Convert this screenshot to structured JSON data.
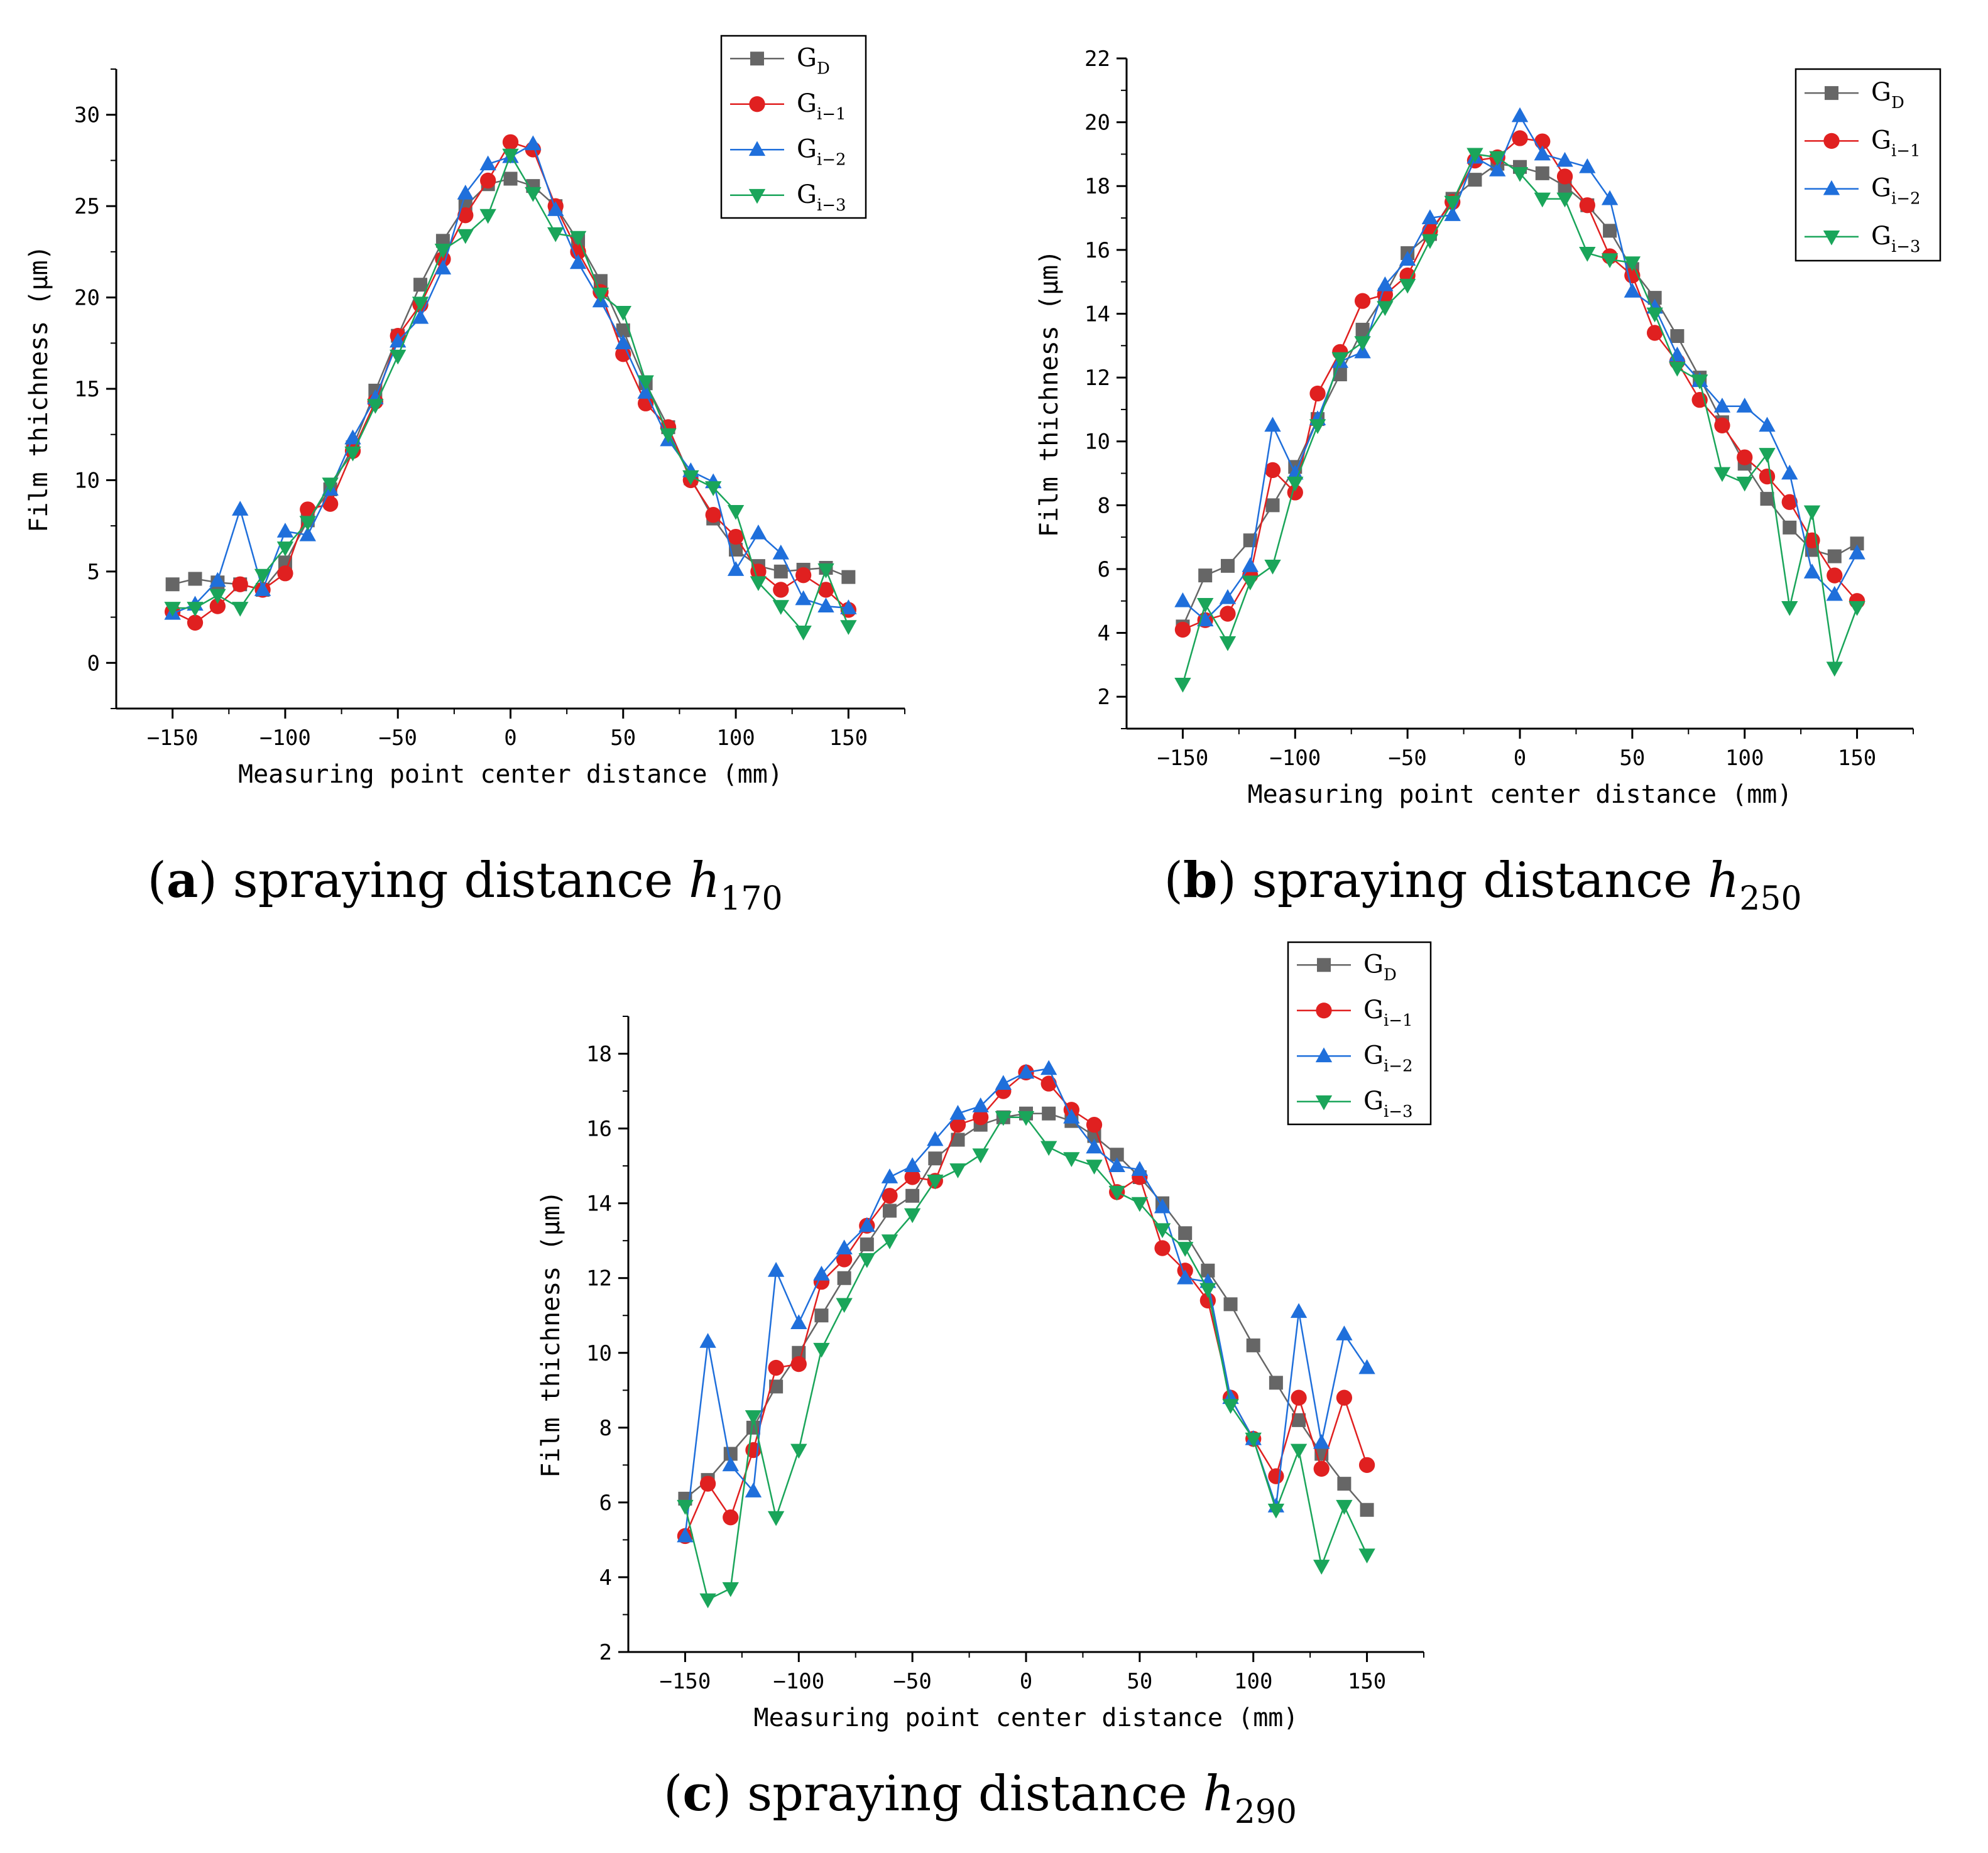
{
  "chart_data": [
    {
      "id": "a",
      "type": "line",
      "caption": {
        "letter": "a",
        "text": "spraying distance",
        "var": "h",
        "sub": "170"
      },
      "xlabel": "Measuring point center distance (mm)",
      "ylabel": "Film thichness (μm)",
      "xlim": [
        -175,
        175
      ],
      "ylim": [
        -2.5,
        32.5
      ],
      "xticks": [
        -150,
        -100,
        -50,
        0,
        50,
        100,
        150
      ],
      "yticks": [
        0,
        5,
        10,
        15,
        20,
        25,
        30
      ],
      "legend_position": "top-right",
      "x": [
        -150,
        -140,
        -130,
        -120,
        -110,
        -100,
        -90,
        -80,
        -70,
        -60,
        -50,
        -40,
        -30,
        -20,
        -10,
        0,
        10,
        20,
        30,
        40,
        50,
        60,
        70,
        80,
        90,
        100,
        110,
        120,
        130,
        140,
        150
      ],
      "series": [
        {
          "name": "G",
          "sub": "D",
          "marker": "square",
          "color": "#666666",
          "values": [
            4.3,
            4.6,
            4.4,
            4.3,
            4.0,
            5.5,
            7.8,
            9.5,
            11.8,
            14.9,
            17.9,
            20.7,
            23.1,
            25.0,
            26.2,
            26.5,
            26.1,
            25.0,
            23.1,
            20.9,
            18.2,
            15.3,
            12.9,
            10.1,
            7.9,
            6.2,
            5.3,
            5.0,
            5.1,
            5.2,
            4.7
          ]
        },
        {
          "name": "G",
          "sub": "i−1",
          "marker": "circle",
          "color": "#e02020",
          "values": [
            2.8,
            2.2,
            3.1,
            4.3,
            4.0,
            4.9,
            8.4,
            8.7,
            11.6,
            14.3,
            17.9,
            19.6,
            22.1,
            24.5,
            26.4,
            28.5,
            28.1,
            25.0,
            22.5,
            20.3,
            16.9,
            14.2,
            12.9,
            10.0,
            8.1,
            6.9,
            5.0,
            4.0,
            4.8,
            4.0,
            2.9
          ]
        },
        {
          "name": "G",
          "sub": "i−2",
          "marker": "triangle-up",
          "color": "#1f6fdb",
          "values": [
            2.7,
            3.2,
            4.5,
            8.4,
            4.0,
            7.2,
            7.0,
            9.5,
            12.3,
            14.5,
            17.6,
            18.9,
            21.6,
            25.7,
            27.3,
            27.7,
            28.4,
            24.8,
            21.9,
            19.8,
            17.5,
            14.8,
            12.2,
            10.5,
            9.9,
            5.1,
            7.1,
            6.0,
            3.5,
            3.1,
            3.0
          ]
        },
        {
          "name": "G",
          "sub": "i−3",
          "marker": "triangle-down",
          "color": "#1aa55a",
          "values": [
            3.0,
            3.0,
            3.7,
            3.0,
            4.8,
            6.3,
            7.7,
            9.8,
            11.5,
            14.1,
            16.8,
            19.7,
            22.6,
            23.4,
            24.5,
            27.8,
            25.7,
            23.5,
            23.3,
            20.2,
            19.2,
            15.4,
            12.5,
            10.2,
            9.6,
            8.3,
            4.4,
            3.1,
            1.7,
            5.1,
            2.0
          ]
        }
      ]
    },
    {
      "id": "b",
      "type": "line",
      "caption": {
        "letter": "b",
        "text": "spraying distance",
        "var": "h",
        "sub": "250"
      },
      "xlabel": "Measuring point center distance (mm)",
      "ylabel": "Film thichness (μm)",
      "xlim": [
        -175,
        175
      ],
      "ylim": [
        1,
        22
      ],
      "xticks": [
        -150,
        -100,
        -50,
        0,
        50,
        100,
        150
      ],
      "yticks": [
        2,
        4,
        6,
        8,
        10,
        12,
        14,
        16,
        18,
        20,
        22
      ],
      "legend_position": "top-right",
      "x": [
        -150,
        -140,
        -130,
        -120,
        -110,
        -100,
        -90,
        -80,
        -70,
        -60,
        -50,
        -40,
        -30,
        -20,
        -10,
        0,
        10,
        20,
        30,
        40,
        50,
        60,
        70,
        80,
        90,
        100,
        110,
        120,
        130,
        140,
        150
      ],
      "series": [
        {
          "name": "G",
          "sub": "D",
          "marker": "square",
          "color": "#666666",
          "values": [
            4.2,
            5.8,
            6.1,
            6.9,
            8.0,
            9.2,
            10.7,
            12.1,
            13.5,
            14.6,
            15.9,
            16.5,
            17.6,
            18.2,
            18.7,
            18.6,
            18.4,
            18.0,
            17.4,
            16.6,
            15.4,
            14.5,
            13.3,
            12.0,
            10.6,
            9.3,
            8.2,
            7.3,
            6.6,
            6.4,
            6.8
          ]
        },
        {
          "name": "G",
          "sub": "i−1",
          "marker": "circle",
          "color": "#e02020",
          "values": [
            4.1,
            4.4,
            4.6,
            5.8,
            9.1,
            8.4,
            11.5,
            12.8,
            14.4,
            14.6,
            15.2,
            16.6,
            17.5,
            18.8,
            18.9,
            19.5,
            19.4,
            18.3,
            17.4,
            15.8,
            15.2,
            13.4,
            12.5,
            11.3,
            10.5,
            9.5,
            8.9,
            8.1,
            6.9,
            5.8,
            5.0
          ]
        },
        {
          "name": "G",
          "sub": "i−2",
          "marker": "triangle-up",
          "color": "#1f6fdb",
          "values": [
            5.0,
            4.4,
            5.1,
            6.1,
            10.5,
            9.0,
            10.7,
            12.5,
            12.8,
            14.9,
            15.7,
            17.0,
            17.1,
            18.9,
            18.5,
            20.2,
            19.0,
            18.8,
            18.6,
            17.6,
            14.7,
            14.2,
            12.7,
            11.9,
            11.1,
            11.1,
            10.5,
            9.0,
            5.9,
            5.2,
            6.5
          ]
        },
        {
          "name": "G",
          "sub": "i−3",
          "marker": "triangle-down",
          "color": "#1aa55a",
          "values": [
            2.4,
            4.9,
            3.7,
            5.6,
            6.1,
            8.7,
            10.5,
            12.6,
            13.1,
            14.2,
            14.9,
            16.3,
            17.5,
            19.0,
            18.9,
            18.4,
            17.6,
            17.6,
            15.9,
            15.7,
            15.6,
            14.0,
            12.3,
            11.9,
            9.0,
            8.7,
            9.6,
            4.8,
            7.8,
            2.9,
            4.8
          ]
        }
      ]
    },
    {
      "id": "c",
      "type": "line",
      "caption": {
        "letter": "c",
        "text": "spraying distance",
        "var": "h",
        "sub": "290"
      },
      "xlabel": "Measuring point center distance (mm)",
      "ylabel": "Film thichness (μm)",
      "xlim": [
        -175,
        175
      ],
      "ylim": [
        2,
        19
      ],
      "xticks": [
        -150,
        -100,
        -50,
        0,
        50,
        100,
        150
      ],
      "yticks": [
        2,
        4,
        6,
        8,
        10,
        12,
        14,
        16,
        18
      ],
      "legend_position": "top-right",
      "x": [
        -150,
        -140,
        -130,
        -120,
        -110,
        -100,
        -90,
        -80,
        -70,
        -60,
        -50,
        -40,
        -30,
        -20,
        -10,
        0,
        10,
        20,
        30,
        40,
        50,
        60,
        70,
        80,
        90,
        100,
        110,
        120,
        130,
        140,
        150
      ],
      "series": [
        {
          "name": "G",
          "sub": "D",
          "marker": "square",
          "color": "#666666",
          "values": [
            6.1,
            6.6,
            7.3,
            8.0,
            9.1,
            10.0,
            11.0,
            12.0,
            12.9,
            13.8,
            14.2,
            15.2,
            15.7,
            16.1,
            16.3,
            16.4,
            16.4,
            16.2,
            15.8,
            15.3,
            14.7,
            14.0,
            13.2,
            12.2,
            11.3,
            10.2,
            9.2,
            8.2,
            7.3,
            6.5,
            5.8
          ]
        },
        {
          "name": "G",
          "sub": "i−1",
          "marker": "circle",
          "color": "#e02020",
          "values": [
            5.1,
            6.5,
            5.6,
            7.4,
            9.6,
            9.7,
            11.9,
            12.5,
            13.4,
            14.2,
            14.7,
            14.6,
            16.1,
            16.3,
            17.0,
            17.5,
            17.2,
            16.5,
            16.1,
            14.3,
            14.7,
            12.8,
            12.2,
            11.4,
            8.8,
            7.7,
            6.7,
            8.8,
            6.9,
            8.8,
            7.0
          ]
        },
        {
          "name": "G",
          "sub": "i−2",
          "marker": "triangle-up",
          "color": "#1f6fdb",
          "values": [
            5.1,
            10.3,
            7.0,
            6.3,
            12.2,
            10.8,
            12.1,
            12.8,
            13.4,
            14.7,
            15.0,
            15.7,
            16.4,
            16.6,
            17.2,
            17.5,
            17.6,
            16.3,
            15.5,
            15.0,
            14.9,
            13.9,
            12.0,
            11.9,
            8.8,
            7.7,
            5.9,
            11.1,
            7.6,
            10.5,
            9.6
          ]
        },
        {
          "name": "G",
          "sub": "i−3",
          "marker": "triangle-down",
          "color": "#1aa55a",
          "values": [
            5.9,
            3.4,
            3.7,
            8.3,
            5.6,
            7.4,
            10.1,
            11.3,
            12.5,
            13.0,
            13.7,
            14.6,
            14.9,
            15.3,
            16.3,
            16.3,
            15.5,
            15.2,
            15.0,
            14.3,
            14.0,
            13.3,
            12.8,
            11.7,
            8.6,
            7.7,
            5.8,
            7.4,
            4.3,
            5.9,
            4.6
          ]
        }
      ]
    }
  ]
}
